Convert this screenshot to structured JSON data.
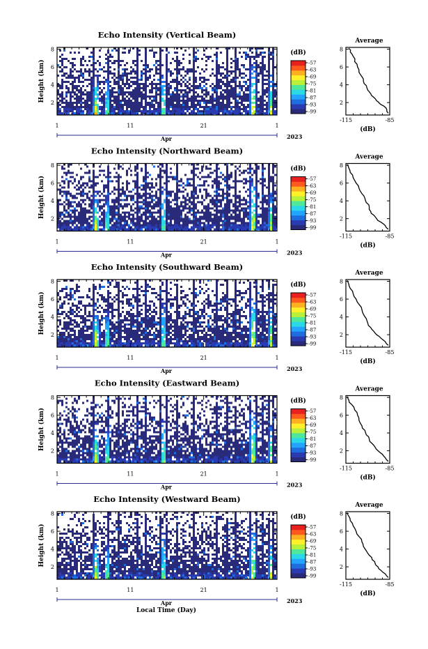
{
  "figure": {
    "x_axis_label": "Local Time (Day)",
    "y_axis_label": "Height (km)",
    "month_label": "Apr",
    "year_label": "2023",
    "colorbar_unit": "(dB)",
    "profile_title": "Average",
    "profile_xlabel": "(dB)"
  },
  "chart_data": [
    {
      "type": "heatmap",
      "title": "Echo Intensity (Vertical Beam)",
      "xlabel": "Local Time (Day)",
      "ylabel": "Height (km)",
      "x_ticks": [
        "1",
        "11",
        "21",
        "1"
      ],
      "y_ticks": [
        "2",
        "4",
        "6",
        "8"
      ],
      "xlim": [
        1,
        31
      ],
      "ylim": [
        0.6,
        8.2
      ],
      "colorbar": {
        "label": "(dB)",
        "ticks": [
          "-57",
          "-63",
          "-69",
          "-75",
          "-81",
          "-87",
          "-93",
          "-99"
        ]
      },
      "profile": {
        "title": "Average",
        "xlabel": "(dB)",
        "x_ticks": [
          "-115",
          "-85"
        ],
        "y_ticks": [
          "2",
          "4",
          "6",
          "8"
        ],
        "xlim": [
          -115,
          -85
        ],
        "ylim": [
          0.6,
          8.2
        ],
        "values": [
          [
            -86,
            0.8
          ],
          [
            -87,
            1.2
          ],
          [
            -89,
            1.6
          ],
          [
            -92,
            1.9
          ],
          [
            -94,
            2.2
          ],
          [
            -96,
            2.6
          ],
          [
            -98,
            3.0
          ],
          [
            -100,
            3.4
          ],
          [
            -101,
            3.9
          ],
          [
            -103,
            4.4
          ],
          [
            -104,
            4.9
          ],
          [
            -106,
            5.4
          ],
          [
            -107,
            6.0
          ],
          [
            -109,
            6.6
          ],
          [
            -110,
            7.2
          ],
          [
            -112,
            7.7
          ],
          [
            -113,
            8.1
          ]
        ]
      }
    },
    {
      "type": "heatmap",
      "title": "Echo Intensity (Northward Beam)",
      "xlabel": "Local Time (Day)",
      "ylabel": "Height (km)",
      "x_ticks": [
        "1",
        "11",
        "21",
        "1"
      ],
      "y_ticks": [
        "2",
        "4",
        "6",
        "8"
      ],
      "xlim": [
        1,
        31
      ],
      "ylim": [
        0.6,
        8.2
      ],
      "colorbar": {
        "label": "(dB)",
        "ticks": [
          "-57",
          "-63",
          "-69",
          "-75",
          "-81",
          "-87",
          "-93",
          "-99"
        ]
      },
      "profile": {
        "title": "Average",
        "xlabel": "(dB)",
        "x_ticks": [
          "-115",
          "-85"
        ],
        "y_ticks": [
          "2",
          "4",
          "6",
          "8"
        ],
        "xlim": [
          -115,
          -85
        ],
        "ylim": [
          0.6,
          8.2
        ],
        "values": [
          [
            -86,
            0.8
          ],
          [
            -88,
            1.2
          ],
          [
            -91,
            1.6
          ],
          [
            -94,
            2.0
          ],
          [
            -96,
            2.4
          ],
          [
            -98,
            2.8
          ],
          [
            -99,
            3.3
          ],
          [
            -101,
            3.8
          ],
          [
            -102,
            4.3
          ],
          [
            -104,
            4.8
          ],
          [
            -106,
            5.4
          ],
          [
            -108,
            6.0
          ],
          [
            -110,
            6.6
          ],
          [
            -112,
            7.2
          ],
          [
            -113,
            7.7
          ],
          [
            -114,
            8.1
          ]
        ]
      }
    },
    {
      "type": "heatmap",
      "title": "Echo Intensity (Southward Beam)",
      "xlabel": "Local Time (Day)",
      "ylabel": "Height (km)",
      "x_ticks": [
        "1",
        "11",
        "21",
        "1"
      ],
      "y_ticks": [
        "2",
        "4",
        "6",
        "8"
      ],
      "xlim": [
        1,
        31
      ],
      "ylim": [
        0.6,
        8.2
      ],
      "colorbar": {
        "label": "(dB)",
        "ticks": [
          "-57",
          "-63",
          "-69",
          "-75",
          "-81",
          "-87",
          "-93",
          "-99"
        ]
      },
      "profile": {
        "title": "Average",
        "xlabel": "(dB)",
        "x_ticks": [
          "-115",
          "-85"
        ],
        "y_ticks": [
          "2",
          "4",
          "6",
          "8"
        ],
        "xlim": [
          -115,
          -85
        ],
        "ylim": [
          0.6,
          8.2
        ],
        "values": [
          [
            -86,
            0.8
          ],
          [
            -88,
            1.2
          ],
          [
            -91,
            1.6
          ],
          [
            -94,
            2.0
          ],
          [
            -96,
            2.4
          ],
          [
            -98,
            2.8
          ],
          [
            -100,
            3.3
          ],
          [
            -101,
            3.8
          ],
          [
            -103,
            4.3
          ],
          [
            -104,
            4.8
          ],
          [
            -106,
            5.4
          ],
          [
            -108,
            6.0
          ],
          [
            -110,
            6.6
          ],
          [
            -112,
            7.2
          ],
          [
            -113,
            7.7
          ],
          [
            -114,
            8.1
          ]
        ]
      }
    },
    {
      "type": "heatmap",
      "title": "Echo Intensity (Eastward Beam)",
      "xlabel": "Local Time (Day)",
      "ylabel": "Height (km)",
      "x_ticks": [
        "1",
        "11",
        "21",
        "1"
      ],
      "y_ticks": [
        "2",
        "4",
        "6",
        "8"
      ],
      "xlim": [
        1,
        31
      ],
      "ylim": [
        0.6,
        8.2
      ],
      "colorbar": {
        "label": "(dB)",
        "ticks": [
          "-57",
          "-63",
          "-69",
          "-75",
          "-81",
          "-87",
          "-93",
          "-99"
        ]
      },
      "profile": {
        "title": "Average",
        "xlabel": "(dB)",
        "x_ticks": [
          "-115",
          "-85"
        ],
        "y_ticks": [
          "2",
          "4",
          "6",
          "8"
        ],
        "xlim": [
          -115,
          -85
        ],
        "ylim": [
          0.6,
          8.2
        ],
        "values": [
          [
            -86,
            0.8
          ],
          [
            -88,
            1.2
          ],
          [
            -90,
            1.6
          ],
          [
            -93,
            2.0
          ],
          [
            -95,
            2.4
          ],
          [
            -97,
            2.8
          ],
          [
            -99,
            3.3
          ],
          [
            -101,
            3.8
          ],
          [
            -102,
            4.3
          ],
          [
            -104,
            4.8
          ],
          [
            -106,
            5.4
          ],
          [
            -107,
            6.0
          ],
          [
            -109,
            6.6
          ],
          [
            -111,
            7.2
          ],
          [
            -113,
            7.7
          ],
          [
            -114,
            8.1
          ]
        ]
      }
    },
    {
      "type": "heatmap",
      "title": "Echo Intensity (Westward Beam)",
      "xlabel": "Local Time (Day)",
      "ylabel": "Height (km)",
      "x_ticks": [
        "1",
        "11",
        "21",
        "1"
      ],
      "y_ticks": [
        "2",
        "4",
        "6",
        "8"
      ],
      "xlim": [
        1,
        31
      ],
      "ylim": [
        0.6,
        8.2
      ],
      "colorbar": {
        "label": "(dB)",
        "ticks": [
          "-57",
          "-63",
          "-69",
          "-75",
          "-81",
          "-87",
          "-93",
          "-99"
        ]
      },
      "profile": {
        "title": "Average",
        "xlabel": "(dB)",
        "x_ticks": [
          "-115",
          "-85"
        ],
        "y_ticks": [
          "2",
          "4",
          "6",
          "8"
        ],
        "xlim": [
          -115,
          -85
        ],
        "ylim": [
          0.6,
          8.2
        ],
        "values": [
          [
            -86,
            0.8
          ],
          [
            -88,
            1.2
          ],
          [
            -91,
            1.6
          ],
          [
            -93,
            2.0
          ],
          [
            -95,
            2.4
          ],
          [
            -97,
            2.8
          ],
          [
            -99,
            3.3
          ],
          [
            -101,
            3.8
          ],
          [
            -103,
            4.3
          ],
          [
            -104,
            4.8
          ],
          [
            -106,
            5.4
          ],
          [
            -108,
            6.0
          ],
          [
            -110,
            6.6
          ],
          [
            -112,
            7.2
          ],
          [
            -113,
            7.7
          ],
          [
            -114,
            8.1
          ]
        ]
      }
    }
  ],
  "colormap": [
    "#2a2a7a",
    "#2a3ab0",
    "#1f6ee0",
    "#22a4ff",
    "#2ad8e8",
    "#4fe89a",
    "#b8f03a",
    "#fff02a",
    "#ffb020",
    "#ff5a1e",
    "#e8201e"
  ]
}
